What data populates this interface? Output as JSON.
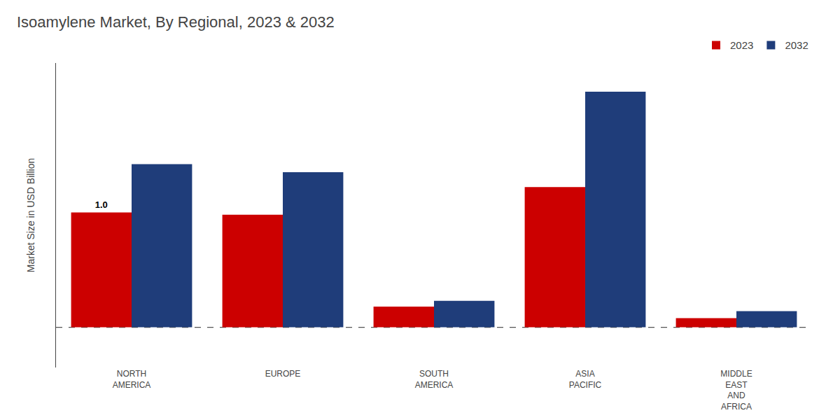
{
  "chart_data": {
    "type": "bar",
    "title": "Isoamylene Market, By Regional, 2023 & 2032",
    "ylabel": "Market Size in USD Billion",
    "categories": [
      "NORTH\nAMERICA",
      "EUROPE",
      "SOUTH\nAMERICA",
      "ASIA\nPACIFIC",
      "MIDDLE\nEAST\nAND\nAFRICA"
    ],
    "series": [
      {
        "name": "2023",
        "color": "#cc0000",
        "values": [
          1.0,
          0.98,
          0.18,
          1.22,
          0.08
        ]
      },
      {
        "name": "2032",
        "color": "#1f3d7a",
        "values": [
          1.42,
          1.35,
          0.23,
          2.05,
          0.14
        ]
      }
    ],
    "annotations": [
      {
        "text": "1.0",
        "category": "NORTH\nAMERICA",
        "series": "2023"
      }
    ],
    "hlines": [
      {
        "y": 0,
        "color": "#555555",
        "line_style": "dashed"
      }
    ],
    "ylim": [
      -0.35,
      2.3
    ],
    "tick_labels": "x",
    "grid": false,
    "legend": "upper right"
  }
}
